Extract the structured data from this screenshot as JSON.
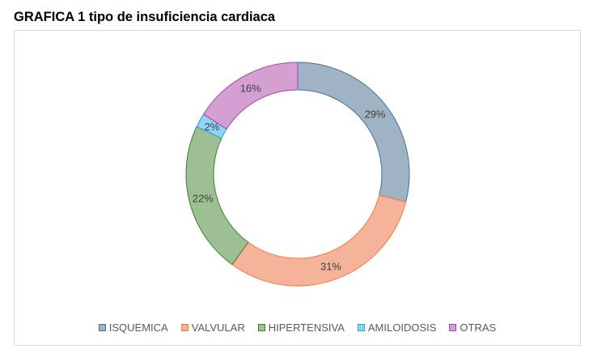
{
  "page": {
    "title": "GRAFICA 1 tipo de insuficiencia cardiaca"
  },
  "chart_data": {
    "type": "pie",
    "variant": "donut",
    "title": "GRAFICA 1 tipo de insuficiencia cardiaca",
    "categories": [
      "ISQUEMICA",
      "VALVULAR",
      "HIPERTENSIVA",
      "AMILOIDOSIS",
      "OTRAS"
    ],
    "values": [
      29,
      31,
      22,
      2,
      16
    ],
    "labels": [
      "29%",
      "31%",
      "22%",
      "2%",
      "16%"
    ],
    "colors": [
      "#9fb3c4",
      "#f5b49a",
      "#9cbf94",
      "#8fd4f2",
      "#d4a0d2"
    ],
    "edge_colors": [
      "#44728f",
      "#ef7a3f",
      "#3f7d37",
      "#2ba1d9",
      "#a746a6"
    ],
    "legend_position": "bottom",
    "start": "top, clockwise"
  }
}
